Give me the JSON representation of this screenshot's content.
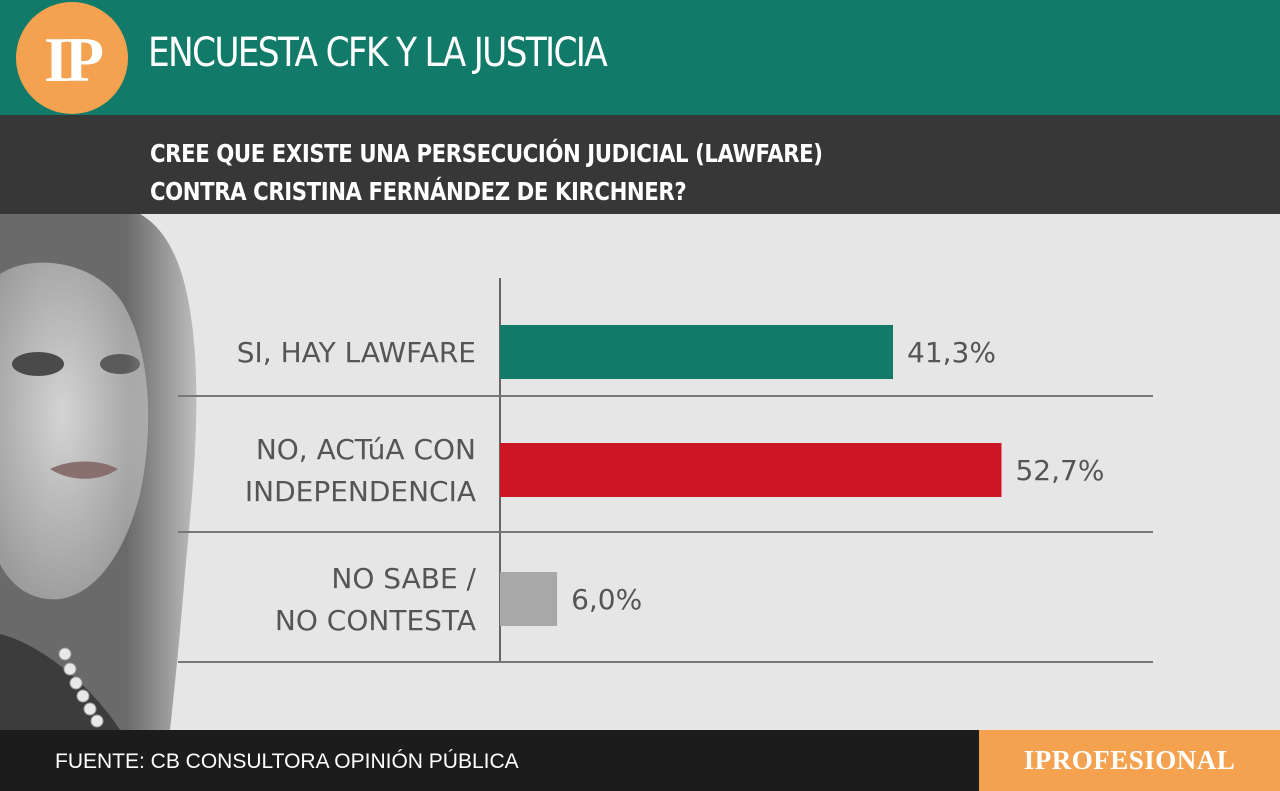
{
  "header": {
    "logo_text": "IP",
    "title": "ENCUESTA CFK Y LA JUSTICIA"
  },
  "question": {
    "line1": "CREE QUE EXISTE UNA PERSECUCIÓN JUDICIAL (LAWFARE)",
    "line2": "CONTRA CRISTINA FERNÁNDEZ DE KIRCHNER?"
  },
  "footer": {
    "source": "FUENTE: CB CONSULTORA OPINIÓN PÚBLICA",
    "brand": "IPROFESIONAL"
  },
  "colors": {
    "header_green": "#127a68",
    "question_bar": "#373737",
    "orange": "#f4a24f"
  },
  "chart_data": {
    "type": "bar",
    "orientation": "horizontal",
    "categories": [
      [
        "SI, HAY LAWFARE"
      ],
      [
        "NO, ACTúA CON",
        "INDEPENDENCIA"
      ],
      [
        "NO SABE /",
        "NO CONTESTA"
      ]
    ],
    "values": [
      41.3,
      52.7,
      6.0
    ],
    "value_labels": [
      "41,3%",
      "52,7%",
      "6,0%"
    ],
    "colors": [
      "#127a68",
      "#cc1626",
      "#a8a8a8"
    ],
    "xlim": [
      0,
      70
    ]
  }
}
